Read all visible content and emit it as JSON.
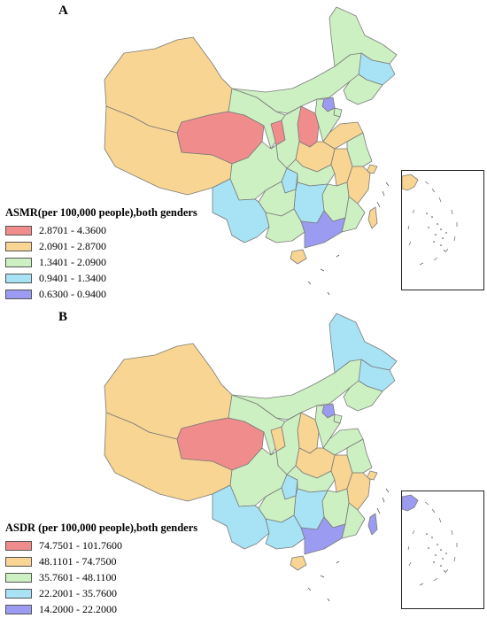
{
  "colors": {
    "c1": "#f08c8c",
    "c2": "#f8d592",
    "c3": "#cdf0c3",
    "c4": "#a7e3f5",
    "c5": "#9b9bf2",
    "border": "#7a7a7a"
  },
  "panel_a": {
    "letter": "A",
    "legend_title": "ASMR(per 100,000 people),both genders",
    "legend": [
      {
        "label": "2.8701 - 4.3600",
        "color": "#f08c8c"
      },
      {
        "label": "2.0901 - 2.8700",
        "color": "#f8d592"
      },
      {
        "label": "1.3401 - 2.0900",
        "color": "#cdf0c3"
      },
      {
        "label": "0.9401 - 1.3400",
        "color": "#a7e3f5"
      },
      {
        "label": "0.6300 - 0.9400",
        "color": "#9b9bf2"
      }
    ]
  },
  "panel_b": {
    "letter": "B",
    "legend_title": "ASDR (per 100,000 people),both genders",
    "legend": [
      {
        "label": "74.7501 - 101.7600",
        "color": "#f08c8c"
      },
      {
        "label": "48.1101 - 74.7500",
        "color": "#f8d592"
      },
      {
        "label": "35.7601 - 48.1100",
        "color": "#cdf0c3"
      },
      {
        "label": "22.2001 - 35.7600",
        "color": "#a7e3f5"
      },
      {
        "label": "14.2000 - 22.2000",
        "color": "#9b9bf2"
      }
    ]
  },
  "map_a": {
    "xinjiang": "c2",
    "tibet": "c2",
    "qinghai": "c1",
    "gansu": "c3",
    "ningxia": "c1",
    "inner_mongolia": "c3",
    "heilongjiang": "c3",
    "jilin": "c4",
    "liaoning": "c3",
    "beijing": "c5",
    "tianjin": "c3",
    "hebei": "c3",
    "shanxi": "c1",
    "shaanxi": "c3",
    "henan": "c2",
    "shandong": "c2",
    "sichuan": "c3",
    "chongqing": "c4",
    "hubei": "c3",
    "anhui": "c2",
    "jiangsu": "c3",
    "shanghai": "c2",
    "zhejiang": "c2",
    "jiangxi": "c3",
    "hunan": "c4",
    "guizhou": "c3",
    "yunnan": "c4",
    "guangxi": "c3",
    "guangdong": "c5",
    "fujian": "c3",
    "hainan": "c2",
    "taiwan": "c2"
  },
  "map_b": {
    "xinjiang": "c2",
    "tibet": "c2",
    "qinghai": "c1",
    "gansu": "c3",
    "ningxia": "c2",
    "inner_mongolia": "c3",
    "heilongjiang": "c4",
    "jilin": "c4",
    "liaoning": "c3",
    "beijing": "c5",
    "tianjin": "c3",
    "hebei": "c3",
    "shanxi": "c2",
    "shaanxi": "c3",
    "henan": "c2",
    "shandong": "c3",
    "sichuan": "c3",
    "chongqing": "c4",
    "hubei": "c3",
    "anhui": "c2",
    "jiangsu": "c3",
    "shanghai": "c2",
    "zhejiang": "c2",
    "jiangxi": "c3",
    "hunan": "c4",
    "guizhou": "c3",
    "yunnan": "c4",
    "guangxi": "c4",
    "guangdong": "c5",
    "fujian": "c3",
    "hainan": "c2",
    "taiwan": "c5"
  }
}
